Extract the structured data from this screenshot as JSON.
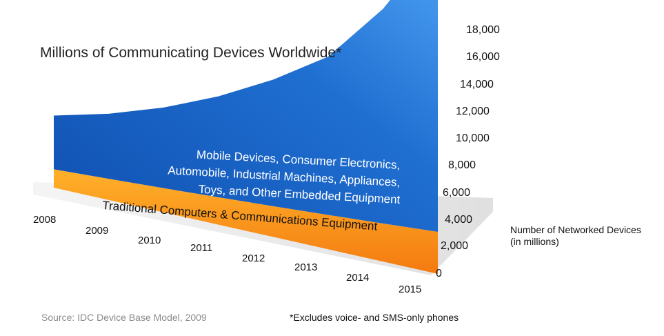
{
  "chart_data": {
    "type": "area",
    "title": "Millions of Communicating Devices Worldwide*",
    "x": [
      "2008",
      "2009",
      "2010",
      "2011",
      "2012",
      "2013",
      "2014",
      "2015"
    ],
    "series": [
      {
        "name": "Traditional Computers & Communications Equipment",
        "values": [
          1300,
          1400,
          1500,
          1600,
          1700,
          1800,
          1900,
          2000
        ],
        "color": "#f7941d"
      },
      {
        "name": "Mobile Devices, Consumer Electronics, Automobile, Industrial Machines, Appliances, Toys, and Other Embedded Equipment",
        "values": [
          3800,
          4300,
          5000,
          5900,
          7000,
          8300,
          10700,
          13800
        ],
        "color": "#1f6fd1"
      }
    ],
    "stacked": true,
    "y_ticks": [
      "18,000",
      "16,000",
      "14,000",
      "12,000",
      "10,000",
      "8,000",
      "6,000",
      "4,000",
      "2,000",
      "0"
    ],
    "ylim": [
      0,
      18000
    ],
    "ylabel": "Number of Networked Devices\n(in millions)",
    "series_labels": [
      [
        "Traditional Computers & Communications Equipment"
      ],
      [
        "Mobile Devices, Consumer Electronics,",
        "Automobile, Industrial Machines, Appliances,",
        "Toys, and Other Embedded Equipment"
      ]
    ],
    "source": "Source: IDC Device Base Model, 2009",
    "footnote": "*Excludes voice- and SMS-only phones",
    "grid": false,
    "legend": "none"
  }
}
